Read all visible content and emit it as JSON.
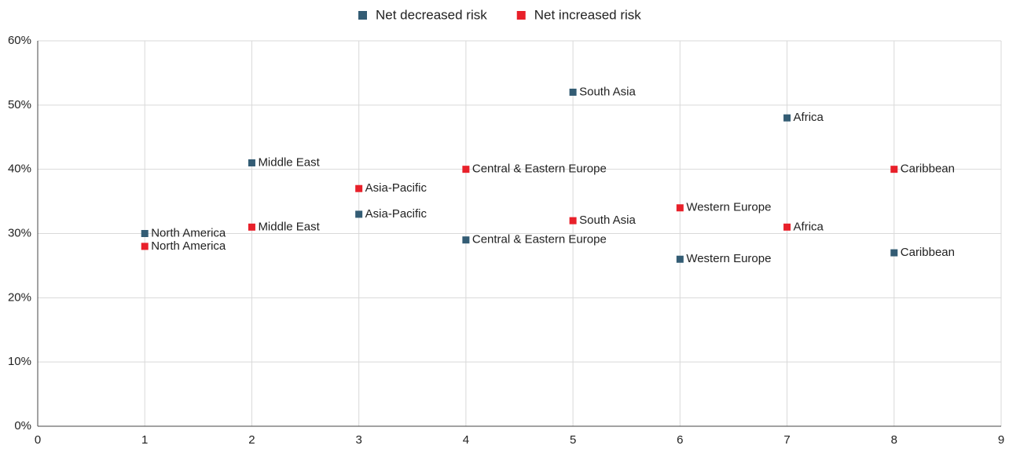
{
  "chart_data": {
    "type": "scatter",
    "series": [
      {
        "name": "Net decreased risk",
        "color": "#335c74",
        "x": [
          1,
          2,
          3,
          4,
          5,
          6,
          7,
          8
        ],
        "values": [
          30,
          41,
          33,
          29,
          52,
          26,
          48,
          27
        ],
        "point_labels": [
          "North America",
          "Middle East",
          "Asia-Pacific",
          "Central & Eastern Europe",
          "South Asia",
          "Western Europe",
          "Africa",
          "Caribbean"
        ]
      },
      {
        "name": "Net increased risk",
        "color": "#e8202a",
        "x": [
          1,
          2,
          3,
          4,
          5,
          6,
          7,
          8
        ],
        "values": [
          28,
          31,
          37,
          40,
          32,
          34,
          31,
          40
        ],
        "point_labels": [
          "North America",
          "Middle East",
          "Asia-Pacific",
          "Central & Eastern Europe",
          "South Asia",
          "Western Europe",
          "Africa",
          "Caribbean"
        ]
      }
    ],
    "xlim": [
      0,
      9
    ],
    "xticks": [
      0,
      1,
      2,
      3,
      4,
      5,
      6,
      7,
      8,
      9
    ],
    "ylim": [
      0,
      60
    ],
    "yticks": [
      {
        "value": 0,
        "label": "0%"
      },
      {
        "value": 10,
        "label": "10%"
      },
      {
        "value": 20,
        "label": "20%"
      },
      {
        "value": 30,
        "label": "30%"
      },
      {
        "value": 40,
        "label": "40%"
      },
      {
        "value": 50,
        "label": "50%"
      },
      {
        "value": 60,
        "label": "60%"
      }
    ],
    "grid": true,
    "legend": "top"
  }
}
